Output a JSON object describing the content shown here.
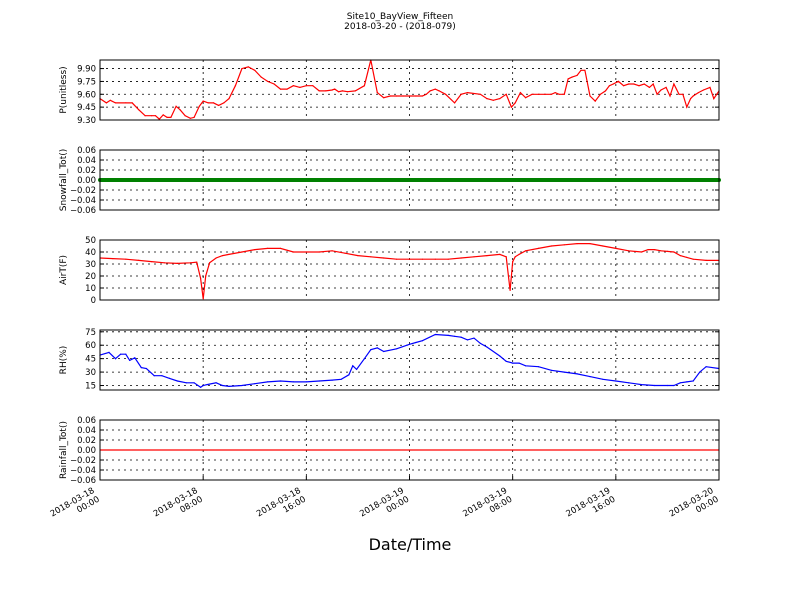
{
  "title": "Site10_BayView_Fifteen",
  "subtitle": "2018-03-20 - (2018-079)",
  "xlabel": "Date/Time",
  "x_ticks": [
    [
      "2018-03-18",
      "00:00"
    ],
    [
      "2018-03-18",
      "08:00"
    ],
    [
      "2018-03-18",
      "16:00"
    ],
    [
      "2018-03-19",
      "00:00"
    ],
    [
      "2018-03-19",
      "08:00"
    ],
    [
      "2018-03-19",
      "16:00"
    ],
    [
      "2018-03-20",
      "00:00"
    ]
  ],
  "chart_data": [
    {
      "type": "line",
      "ylabel": "P(unitless)",
      "ylim": [
        9.3,
        10.0
      ],
      "yticks": [
        "9.30",
        "9.45",
        "9.60",
        "9.75",
        "9.90"
      ],
      "ytick_values": [
        9.3,
        9.45,
        9.6,
        9.75,
        9.9
      ],
      "color": "#ff0000",
      "grid": true,
      "x_unit": "hours since 2018-03-18 00:00",
      "x": [
        0,
        0.5,
        0.8,
        1.2,
        2,
        2.5,
        3,
        3.5,
        4,
        4.3,
        4.6,
        4.9,
        5.2,
        5.5,
        5.9,
        6.2,
        6.6,
        7,
        7.3,
        7.7,
        8,
        8.4,
        8.8,
        9.2,
        9.6,
        10,
        10.5,
        11,
        11.5,
        12,
        12.5,
        13,
        13.5,
        14,
        14.5,
        15,
        15.5,
        16,
        16.5,
        17,
        17.5,
        18,
        18.2,
        18.5,
        18.8,
        19.2,
        19.8,
        20.5,
        21,
        21.5,
        22,
        22.5,
        23,
        23.5,
        24,
        24.5,
        25,
        25.3,
        25.6,
        26,
        26.3,
        26.8,
        27.5,
        28,
        28.5,
        29.5,
        30,
        30.5,
        31,
        31.5,
        31.9,
        32.2,
        32.6,
        33,
        33.5,
        34,
        34.5,
        35,
        35.3,
        35.6,
        36,
        36.3,
        36.6,
        37,
        37.3,
        37.6,
        38,
        38.4,
        38.8,
        39.2,
        39.5,
        39.8,
        40.2,
        40.6,
        41,
        41.4,
        41.8,
        42.2,
        42.6,
        42.9,
        43.2,
        43.5,
        43.9,
        44.2,
        44.5,
        44.9,
        45.2,
        45.5,
        45.8,
        46,
        46.4,
        46.8,
        47.3,
        47.6,
        48
      ],
      "values": [
        9.55,
        9.5,
        9.53,
        9.5,
        9.5,
        9.5,
        9.42,
        9.35,
        9.35,
        9.35,
        9.31,
        9.36,
        9.33,
        9.33,
        9.46,
        9.42,
        9.35,
        9.32,
        9.33,
        9.46,
        9.52,
        9.5,
        9.5,
        9.47,
        9.5,
        9.55,
        9.7,
        9.9,
        9.92,
        9.88,
        9.8,
        9.75,
        9.72,
        9.66,
        9.66,
        9.7,
        9.68,
        9.7,
        9.7,
        9.64,
        9.64,
        9.65,
        9.66,
        9.63,
        9.64,
        9.63,
        9.64,
        9.7,
        10.0,
        9.62,
        9.56,
        9.58,
        9.58,
        9.58,
        9.58,
        9.58,
        9.58,
        9.6,
        9.64,
        9.66,
        9.64,
        9.6,
        9.5,
        9.6,
        9.62,
        9.6,
        9.55,
        9.53,
        9.55,
        9.6,
        9.45,
        9.5,
        9.62,
        9.56,
        9.6,
        9.6,
        9.6,
        9.6,
        9.62,
        9.6,
        9.6,
        9.78,
        9.8,
        9.82,
        9.88,
        9.88,
        9.58,
        9.52,
        9.6,
        9.64,
        9.7,
        9.72,
        9.75,
        9.7,
        9.72,
        9.72,
        9.7,
        9.72,
        9.68,
        9.72,
        9.6,
        9.65,
        9.68,
        9.58,
        9.72,
        9.6,
        9.6,
        9.45,
        9.55,
        9.58,
        9.62,
        9.65,
        9.68,
        9.55,
        9.64
      ]
    },
    {
      "type": "scatter",
      "ylabel": "Snowfall_Tot()",
      "ylim": [
        -0.06,
        0.06
      ],
      "yticks": [
        "0.06",
        "0.04",
        "0.02",
        "0.00",
        "−0.02",
        "−0.04",
        "−0.06"
      ],
      "ytick_values": [
        0.06,
        0.04,
        0.02,
        0.0,
        -0.02,
        -0.04,
        -0.06
      ],
      "color": "#008000",
      "grid": true,
      "constant_value": 0.0
    },
    {
      "type": "line",
      "ylabel": "AirT(F)",
      "ylim": [
        0,
        50
      ],
      "yticks": [
        "50",
        "40",
        "30",
        "20",
        "10",
        "0"
      ],
      "ytick_values": [
        50,
        40,
        30,
        20,
        10,
        0
      ],
      "color": "#ff0000",
      "grid": true,
      "x_unit": "hours since 2018-03-18 00:00",
      "x": [
        0,
        1,
        2,
        3,
        4,
        5,
        6,
        7,
        7.5,
        7.8,
        8.0,
        8.2,
        8.5,
        9,
        9.5,
        10,
        11,
        12,
        13,
        14,
        15,
        16,
        17,
        18,
        19,
        20,
        21,
        22,
        23,
        24,
        25,
        26,
        27,
        28,
        29,
        30,
        31,
        31.5,
        31.8,
        32,
        32.2,
        32.5,
        33,
        34,
        35,
        36,
        37,
        38,
        39,
        40,
        41,
        42,
        42.5,
        43,
        43.5,
        44,
        44.5,
        45,
        45.5,
        46,
        47,
        48
      ],
      "values": [
        35,
        34.5,
        34,
        33,
        32,
        31,
        30.5,
        31,
        31.5,
        18,
        1,
        20,
        31,
        35,
        37,
        38,
        40,
        42,
        43,
        43,
        40,
        40,
        40,
        41,
        39,
        37,
        36,
        35,
        34,
        34,
        34,
        34,
        34,
        35,
        36,
        37,
        38,
        36,
        8,
        32,
        36,
        38,
        41,
        43,
        45,
        46,
        47,
        47,
        45,
        43,
        41,
        40,
        42,
        42,
        41,
        40.5,
        40,
        37,
        35.5,
        34,
        33,
        33
      ]
    },
    {
      "type": "line",
      "ylabel": "RH(%)",
      "ylim": [
        10,
        77
      ],
      "yticks": [
        "75",
        "60",
        "45",
        "30",
        "15"
      ],
      "ytick_values": [
        75,
        60,
        45,
        30,
        15
      ],
      "color": "#0000ff",
      "grid": true,
      "x_unit": "hours since 2018-03-18 00:00",
      "x": [
        0,
        0.7,
        1.2,
        1.6,
        2.0,
        2.3,
        2.7,
        3.2,
        3.6,
        4.2,
        4.8,
        5.4,
        6.0,
        6.7,
        7.3,
        7.8,
        8.0,
        8.3,
        9.0,
        9.5,
        10,
        11,
        12,
        13,
        14,
        15,
        16,
        17,
        18,
        18.7,
        19.3,
        19.6,
        19.9,
        20.5,
        21,
        21.5,
        22,
        23,
        24,
        24.5,
        25,
        26,
        27,
        27.5,
        28,
        28.5,
        29,
        29.5,
        30,
        31,
        31.5,
        32,
        32.5,
        33,
        34,
        35,
        36,
        37,
        38,
        39,
        40,
        41,
        42,
        43,
        44,
        44.5,
        45,
        45.5,
        46,
        46.5,
        47,
        48
      ],
      "values": [
        49,
        52,
        45,
        50,
        50,
        43,
        46,
        35,
        34,
        26,
        26,
        23,
        20,
        18,
        18,
        13,
        15,
        16,
        18,
        15,
        14,
        15,
        17,
        19,
        20,
        19,
        19,
        20,
        21,
        22,
        27,
        37,
        33,
        45,
        55,
        57,
        53,
        56,
        61,
        63,
        65,
        72,
        71,
        70,
        69,
        66,
        68,
        62,
        58,
        48,
        42,
        40,
        40,
        37,
        36,
        32,
        30,
        28,
        25,
        22,
        20,
        18,
        16,
        15,
        15,
        15,
        18,
        19,
        20,
        30,
        36,
        34
      ]
    },
    {
      "type": "line",
      "ylabel": "Rainfall_Tot()",
      "ylim": [
        -0.06,
        0.06
      ],
      "yticks": [
        "0.06",
        "0.04",
        "0.02",
        "0.00",
        "−0.02",
        "−0.04",
        "−0.06"
      ],
      "ytick_values": [
        0.06,
        0.04,
        0.02,
        0.0,
        -0.02,
        -0.04,
        -0.06
      ],
      "color": "#ff0000",
      "grid": true,
      "constant_value": 0.0
    }
  ]
}
